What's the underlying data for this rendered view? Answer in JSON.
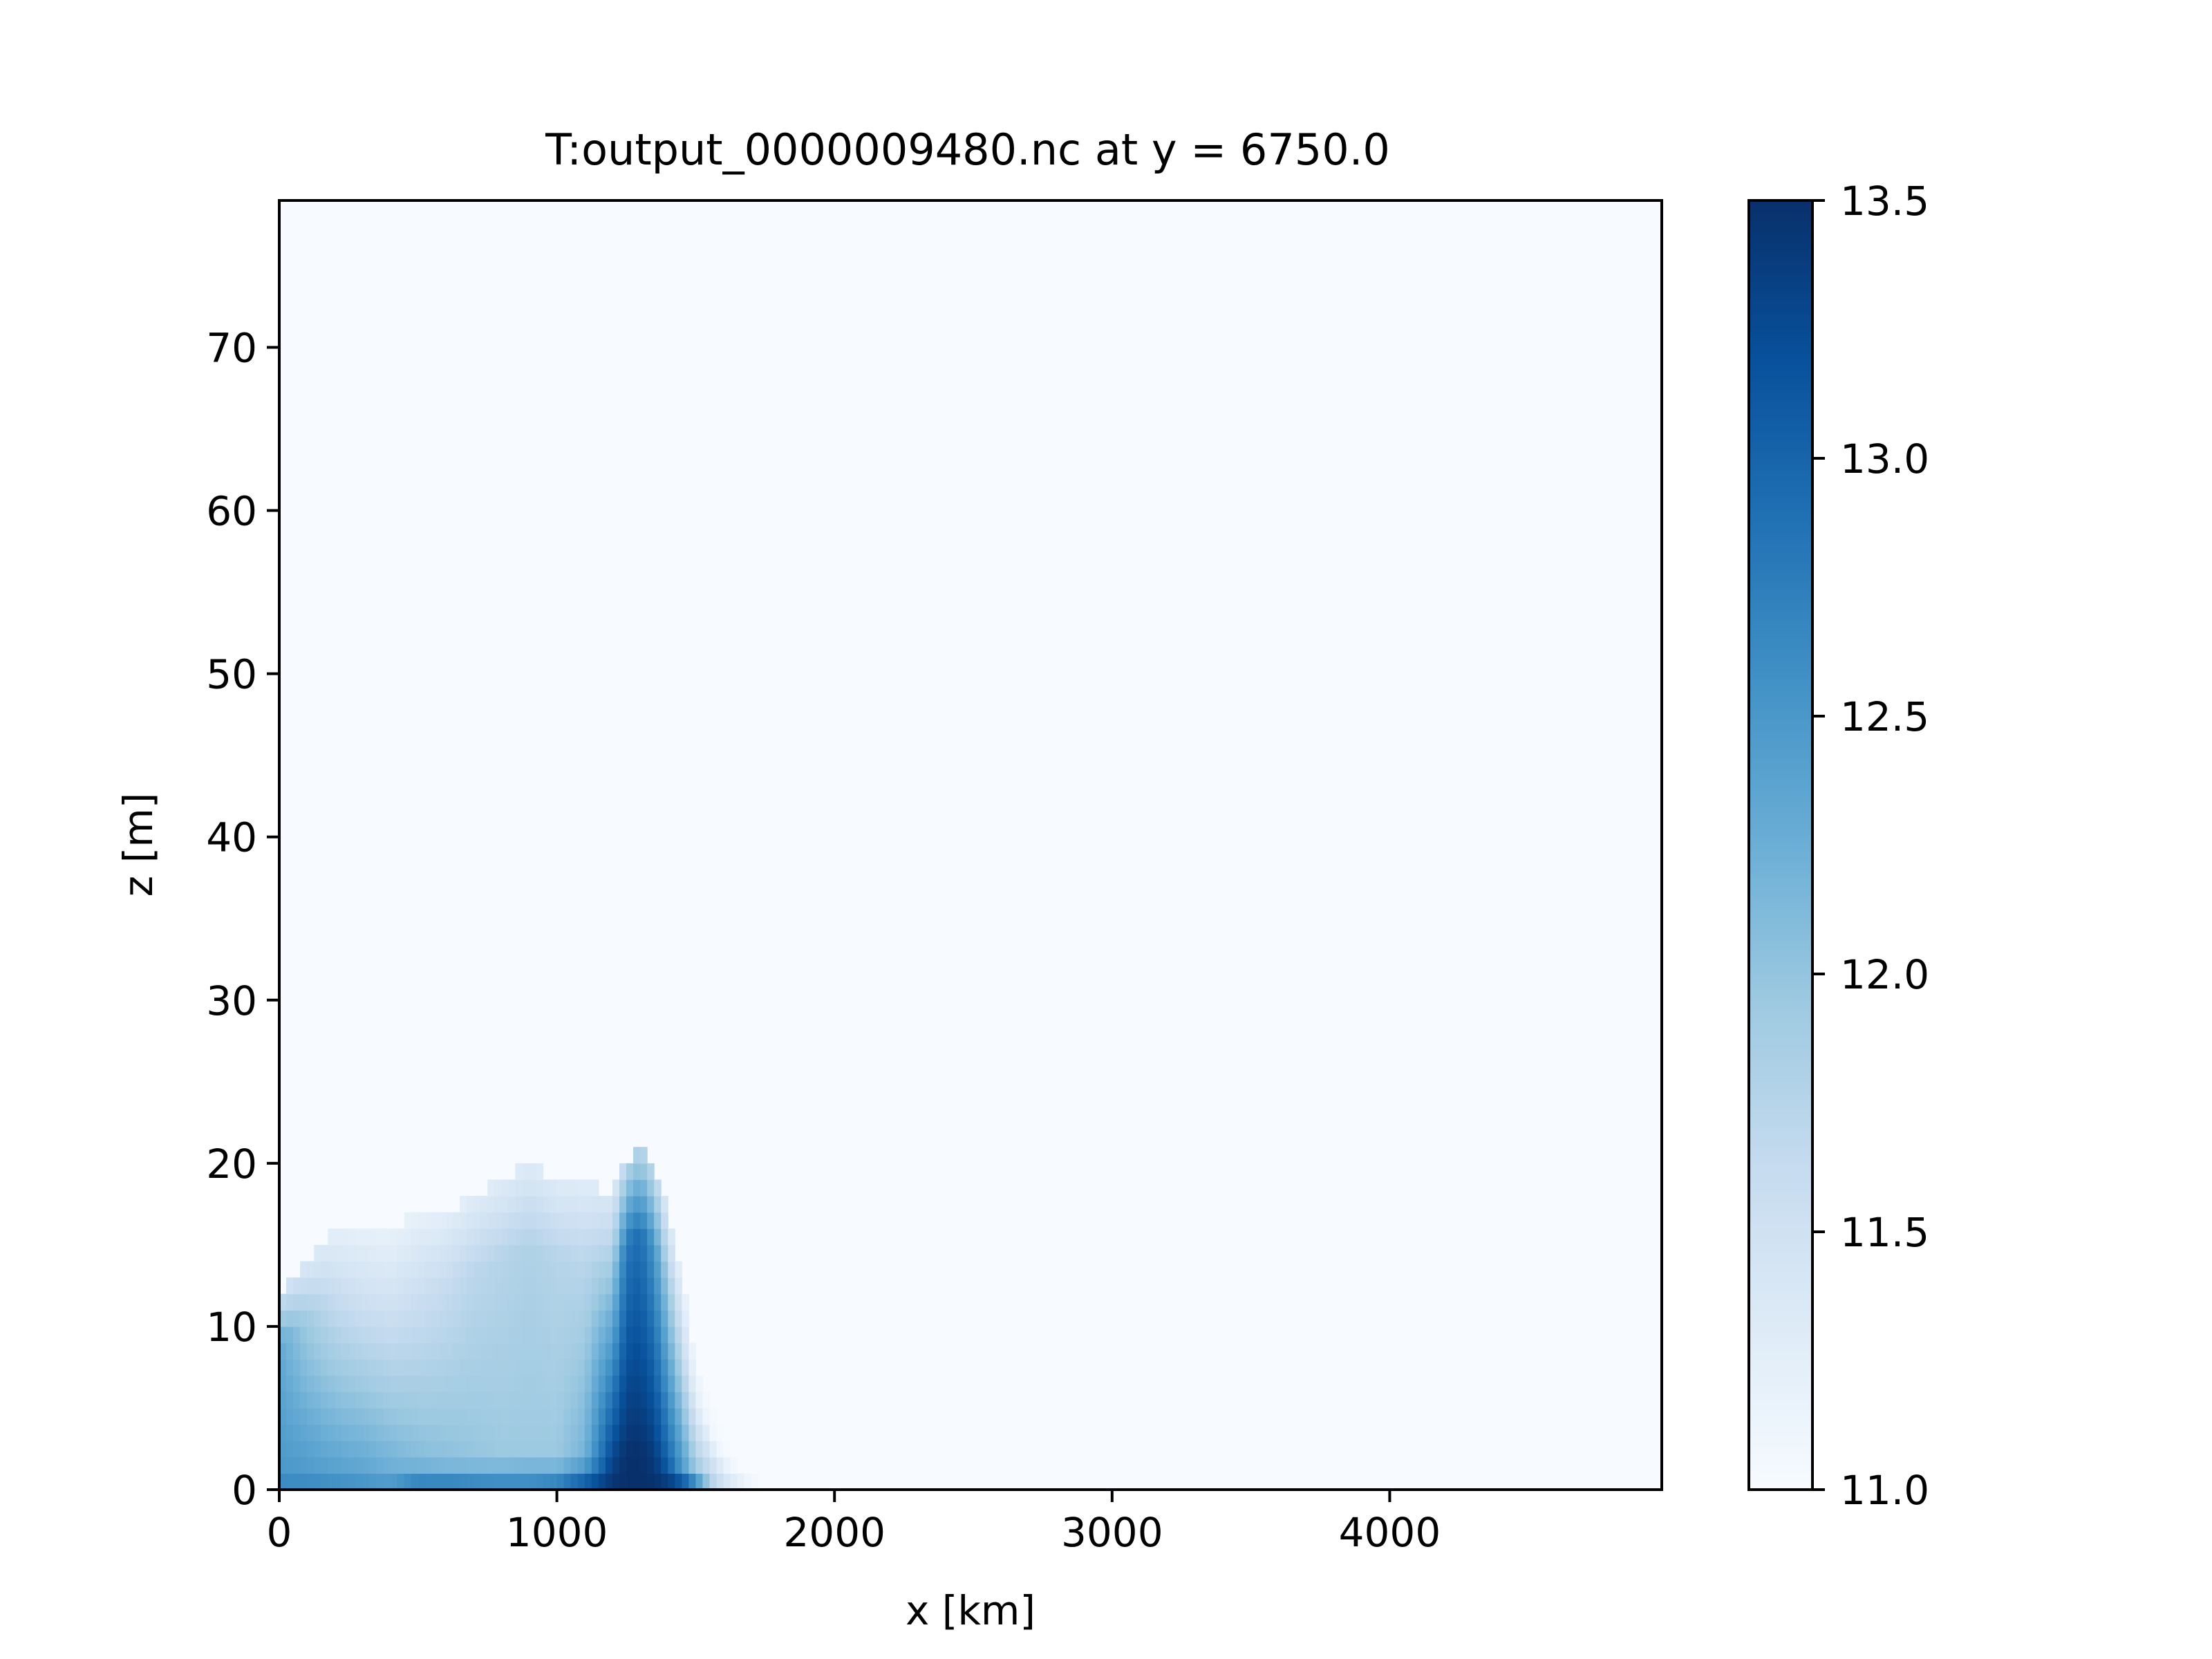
{
  "chart_data": {
    "type": "heatmap",
    "title": "T:output_0000009480.nc at y = 6750.0",
    "xlabel": "x [km]",
    "ylabel": "z [m]",
    "xlim": [
      0,
      4980
    ],
    "ylim": [
      0,
      79
    ],
    "xticks": [
      {
        "value": 0,
        "label": "0"
      },
      {
        "value": 1000,
        "label": "1000"
      },
      {
        "value": 2000,
        "label": "2000"
      },
      {
        "value": 3000,
        "label": "3000"
      },
      {
        "value": 4000,
        "label": "4000"
      }
    ],
    "yticks": [
      {
        "value": 0,
        "label": "0"
      },
      {
        "value": 10,
        "label": "10"
      },
      {
        "value": 20,
        "label": "20"
      },
      {
        "value": 30,
        "label": "30"
      },
      {
        "value": 40,
        "label": "40"
      },
      {
        "value": 50,
        "label": "50"
      },
      {
        "value": 60,
        "label": "60"
      },
      {
        "value": 70,
        "label": "70"
      }
    ],
    "colorbar": {
      "colormap": "Blues",
      "vmin": 11.0,
      "vmax": 13.5,
      "ticks": [
        {
          "value": 11.0,
          "label": "11.0"
        },
        {
          "value": 11.5,
          "label": "11.5"
        },
        {
          "value": 12.0,
          "label": "12.0"
        },
        {
          "value": 12.5,
          "label": "12.5"
        },
        {
          "value": 13.0,
          "label": "13.0"
        },
        {
          "value": 13.5,
          "label": "13.5"
        }
      ],
      "colors": [
        "#f7fbff",
        "#deebf7",
        "#c6dbef",
        "#9ecae1",
        "#6baed6",
        "#4292c6",
        "#2171b5",
        "#08519c",
        "#08306b"
      ]
    },
    "background_value": 11.0,
    "field_samples": {
      "x": [
        0,
        100,
        200,
        300,
        400,
        500,
        600,
        700,
        800,
        900,
        1000,
        1100,
        1200,
        1250,
        1300,
        1350,
        1400,
        1450,
        1500,
        1550,
        1600,
        1650,
        1700,
        1750,
        1800
      ],
      "columns": [
        {
          "top_z": 12,
          "surface": 12.7,
          "mid": 12.5,
          "upper": 12.3
        },
        {
          "top_z": 14,
          "surface": 12.7,
          "mid": 12.45,
          "upper": 11.9
        },
        {
          "top_z": 16,
          "surface": 12.65,
          "mid": 12.35,
          "upper": 11.6
        },
        {
          "top_z": 16,
          "surface": 12.6,
          "mid": 12.3,
          "upper": 11.5
        },
        {
          "top_z": 16,
          "surface": 12.55,
          "mid": 12.2,
          "upper": 11.45
        },
        {
          "top_z": 17,
          "surface": 12.9,
          "mid": 12.1,
          "upper": 11.5
        },
        {
          "top_z": 17,
          "surface": 12.9,
          "mid": 12.05,
          "upper": 11.6
        },
        {
          "top_z": 18,
          "surface": 12.85,
          "mid": 12.0,
          "upper": 11.7
        },
        {
          "top_z": 19,
          "surface": 12.8,
          "mid": 11.95,
          "upper": 11.75
        },
        {
          "top_z": 20,
          "surface": 12.8,
          "mid": 11.95,
          "upper": 11.8
        },
        {
          "top_z": 19,
          "surface": 12.9,
          "mid": 11.95,
          "upper": 11.75
        },
        {
          "top_z": 19,
          "surface": 13.3,
          "mid": 12.2,
          "upper": 11.7
        },
        {
          "top_z": 18,
          "surface": 13.5,
          "mid": 13.3,
          "upper": 11.9
        },
        {
          "top_z": 20,
          "surface": 13.5,
          "mid": 13.5,
          "upper": 12.8
        },
        {
          "top_z": 21,
          "surface": 13.5,
          "mid": 13.5,
          "upper": 12.9
        },
        {
          "top_z": 20,
          "surface": 13.5,
          "mid": 13.4,
          "upper": 12.5
        },
        {
          "top_z": 17,
          "surface": 13.5,
          "mid": 13.0,
          "upper": 11.9
        },
        {
          "top_z": 13,
          "surface": 13.4,
          "mid": 12.5,
          "upper": 11.5
        },
        {
          "top_z": 8,
          "surface": 13.3,
          "mid": 12.0,
          "upper": 11.2
        },
        {
          "top_z": 5,
          "surface": 13.1,
          "mid": 11.8,
          "upper": 11.1
        },
        {
          "top_z": 3,
          "surface": 12.8,
          "mid": 11.5,
          "upper": 11.05
        },
        {
          "top_z": 2,
          "surface": 12.2,
          "mid": 11.3,
          "upper": 11.0
        },
        {
          "top_z": 2,
          "surface": 11.6,
          "mid": 11.1,
          "upper": 11.0
        },
        {
          "top_z": 1,
          "surface": 11.3,
          "mid": 11.0,
          "upper": 11.0
        },
        {
          "top_z": 1,
          "surface": 11.1,
          "mid": 11.0,
          "upper": 11.0
        }
      ]
    }
  }
}
